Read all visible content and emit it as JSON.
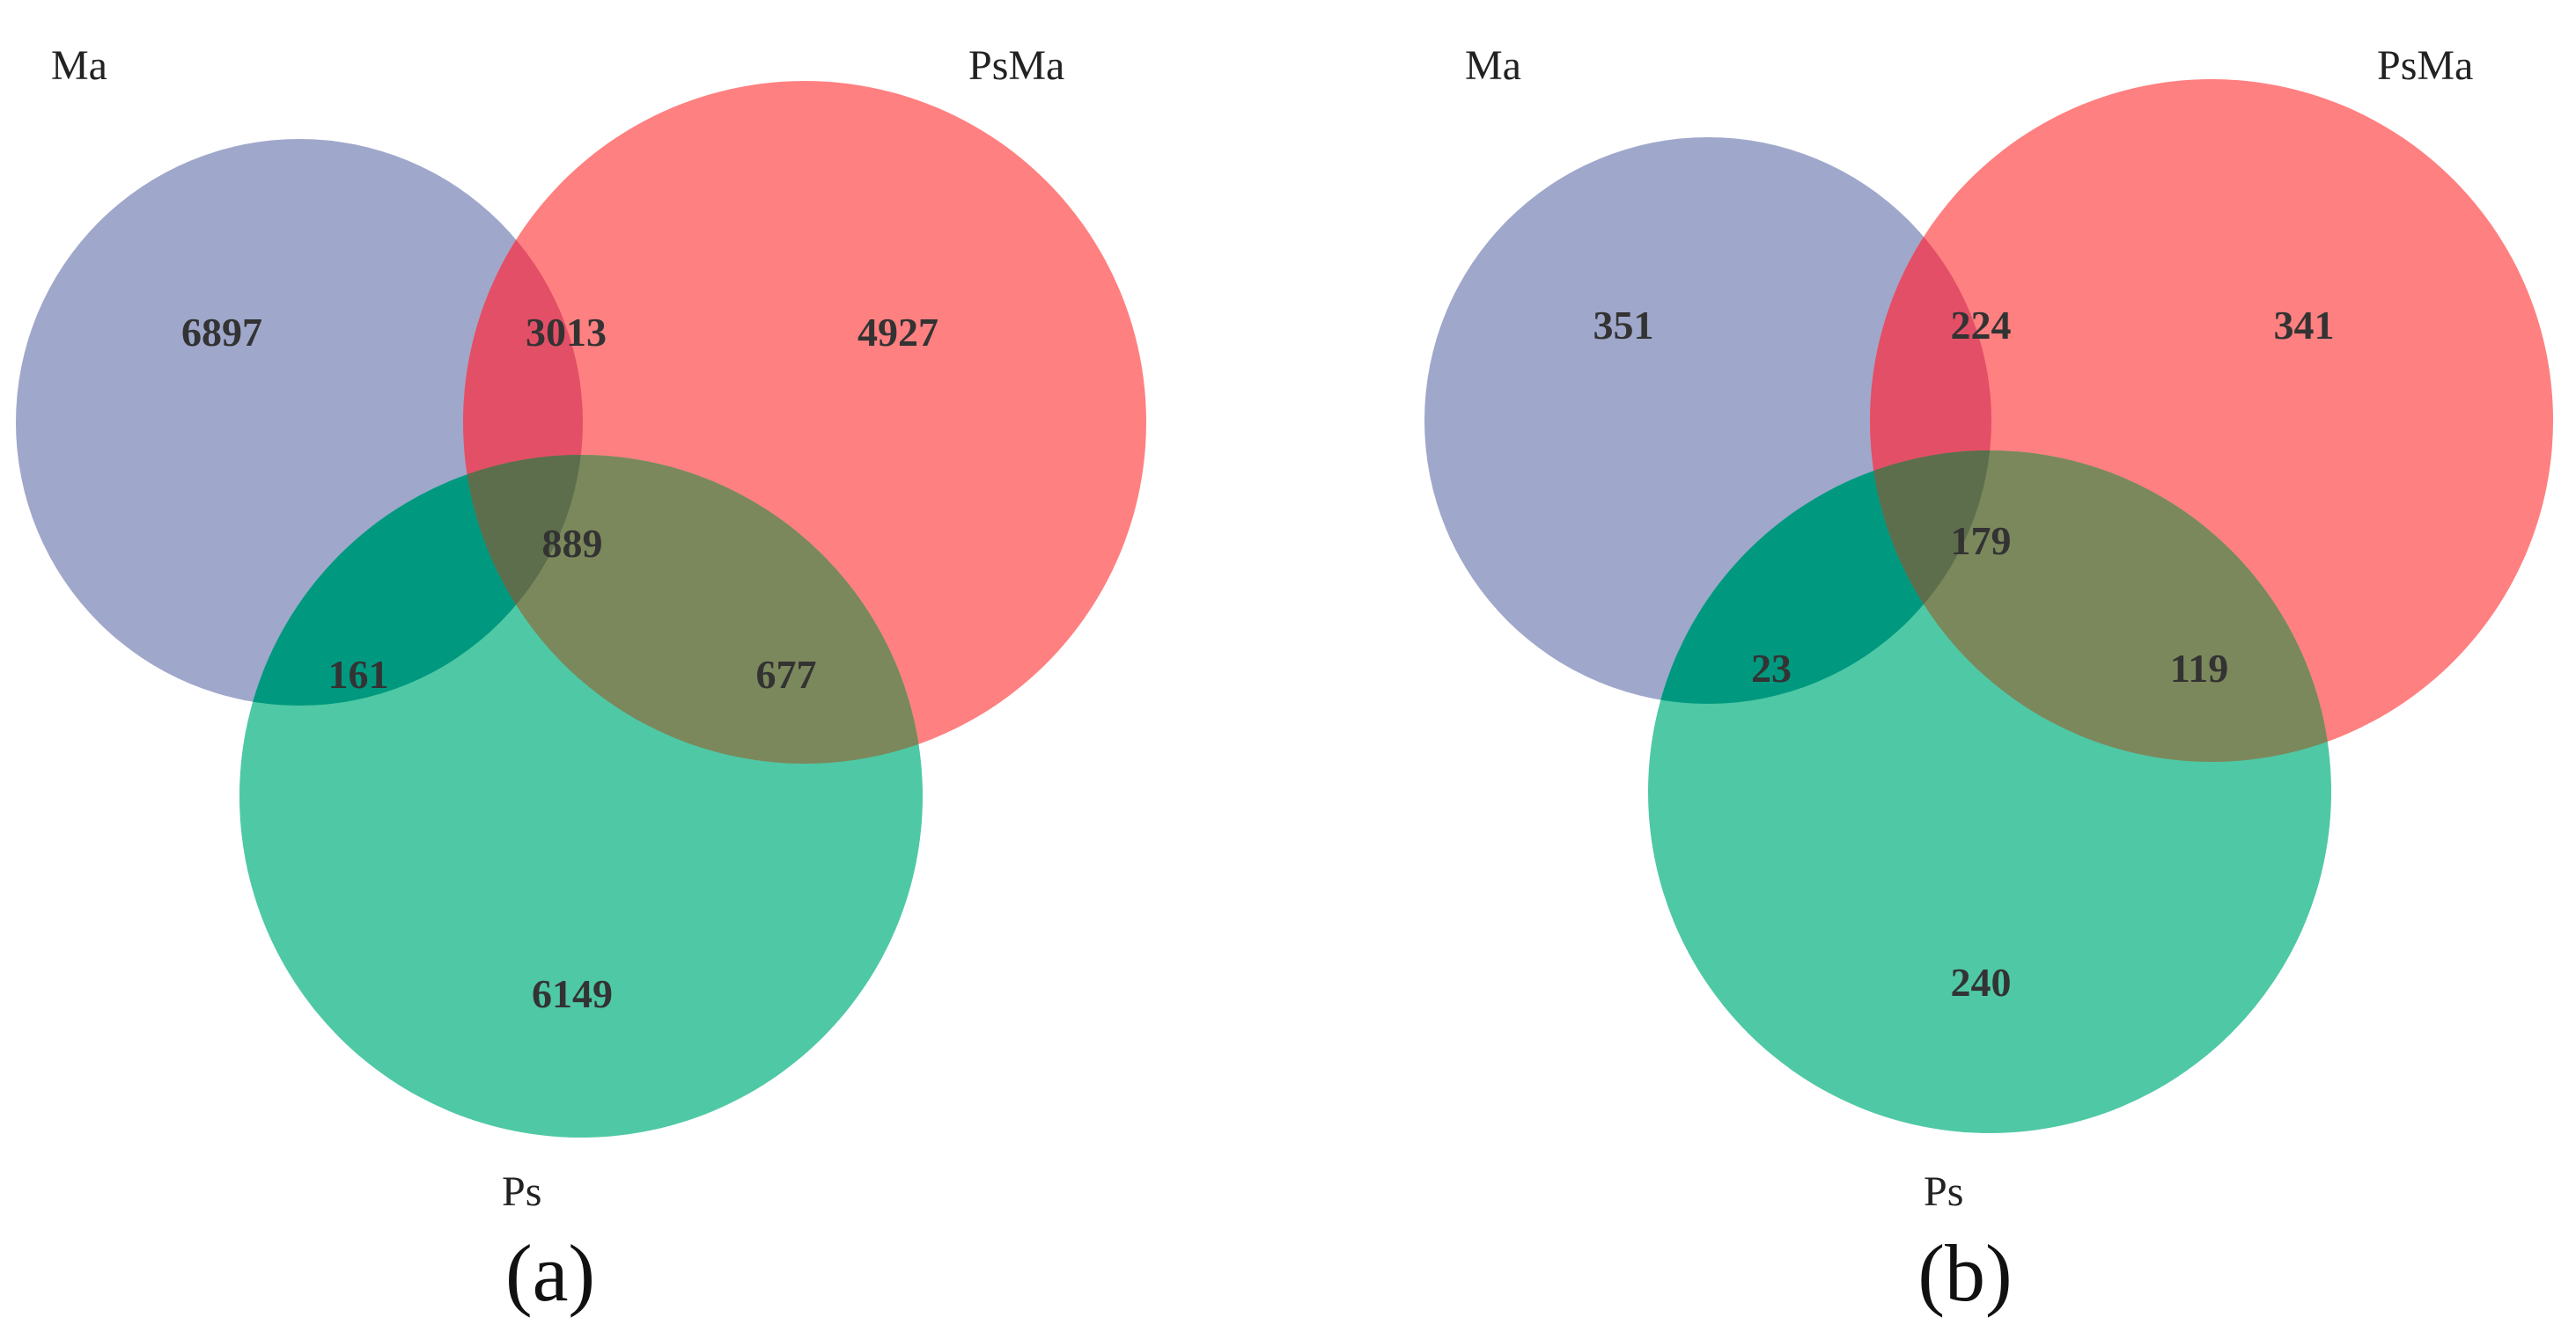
{
  "colors": {
    "ma": "#9fa7cb",
    "psma": "#ff8080",
    "ps": "#4fc8a5",
    "ma_psma": "#e34f66",
    "ma_ps": "#00997f",
    "psma_ps": "#7b885c",
    "all": "#5c6e4b",
    "text": "#333333"
  },
  "panels": [
    {
      "caption": "(a)",
      "labels": {
        "ma": "Ma",
        "psma": "PsMa",
        "ps": "Ps"
      },
      "counts": {
        "ma_only": "6897",
        "psma_only": "4927",
        "ps_only": "6149",
        "ma_psma": "3013",
        "ma_ps": "161",
        "psma_ps": "677",
        "all": "889"
      }
    },
    {
      "caption": "(b)",
      "labels": {
        "ma": "Ma",
        "psma": "PsMa",
        "ps": "Ps"
      },
      "counts": {
        "ma_only": "351",
        "psma_only": "341",
        "ps_only": "240",
        "ma_psma": "224",
        "ma_ps": "23",
        "psma_ps": "119",
        "all": "179"
      }
    }
  ]
}
